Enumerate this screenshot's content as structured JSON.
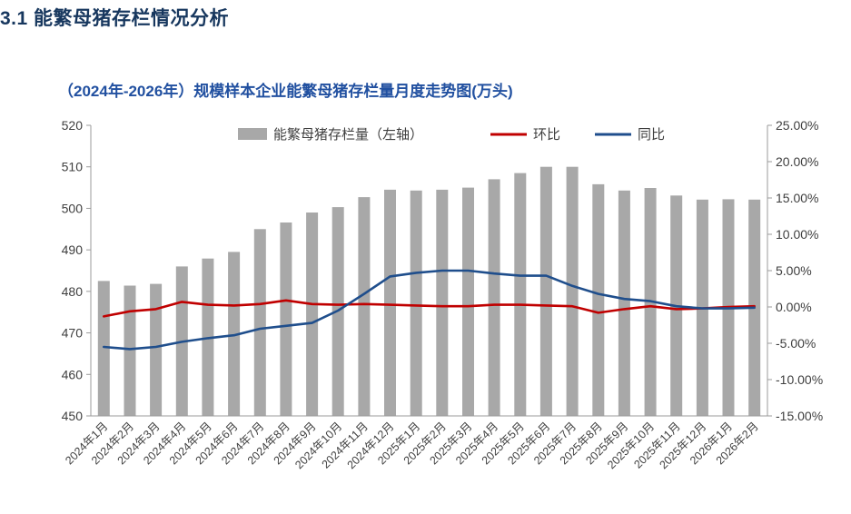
{
  "page": {
    "heading": "3.1 能繁母猪存栏情况分析"
  },
  "chart": {
    "title": "（2024年-2026年）规模样本企业能繁母猪存栏量月度走势图(万头)"
  },
  "chart_data": {
    "type": "bar",
    "title": "（2024年-2026年）规模样本企业能繁母猪存栏量月度走势图(万头)",
    "categories": [
      "2024年1月",
      "2024年2月",
      "2024年3月",
      "2024年4月",
      "2024年5月",
      "2024年6月",
      "2024年7月",
      "2024年8月",
      "2024年9月",
      "2024年10月",
      "2024年11月",
      "2024年12月",
      "2025年1月",
      "2025年2月",
      "2025年3月",
      "2025年4月",
      "2025年5月",
      "2025年6月",
      "2025年7月",
      "2025年8月",
      "2025年9月",
      "2025年10月",
      "2025年11月",
      "2025年12月",
      "2026年1月",
      "2026年2月"
    ],
    "series": [
      {
        "name": "能繁母猪存栏量（左轴）",
        "type": "bar",
        "axis": "left",
        "color": "#a8a8a8",
        "values": [
          482.5,
          481.4,
          481.8,
          486.0,
          487.9,
          489.5,
          495.0,
          496.6,
          499.0,
          500.3,
          502.7,
          504.5,
          504.3,
          504.5,
          505.0,
          507.0,
          508.5,
          510.0,
          510.0,
          505.8,
          504.3,
          504.9,
          503.1,
          502.1,
          502.2,
          502.1
        ]
      },
      {
        "name": "环比",
        "type": "line",
        "axis": "right",
        "color": "#c00000",
        "values": [
          -1.3,
          -0.6,
          -0.3,
          0.7,
          0.3,
          0.2,
          0.4,
          0.9,
          0.4,
          0.3,
          0.4,
          0.3,
          0.2,
          0.1,
          0.1,
          0.3,
          0.3,
          0.2,
          0.1,
          -0.8,
          -0.3,
          0.1,
          -0.3,
          -0.2,
          0.0,
          0.1
        ]
      },
      {
        "name": "同比",
        "type": "line",
        "axis": "right",
        "color": "#1f4e8c",
        "values": [
          -5.5,
          -5.8,
          -5.5,
          -4.8,
          -4.3,
          -3.9,
          -3.0,
          -2.6,
          -2.2,
          -0.5,
          1.8,
          4.2,
          4.7,
          5.0,
          5.0,
          4.6,
          4.3,
          4.3,
          2.9,
          1.8,
          1.1,
          0.8,
          0.1,
          -0.2,
          -0.2,
          -0.1
        ]
      }
    ],
    "left_axis": {
      "min": 450,
      "max": 520,
      "step": 10,
      "labels": [
        "450",
        "460",
        "470",
        "480",
        "490",
        "500",
        "510",
        "520"
      ]
    },
    "right_axis": {
      "min": -15,
      "max": 25,
      "step": 5,
      "format": "percent2",
      "labels": [
        "-15.00%",
        "-10.00%",
        "-5.00%",
        "0.00%",
        "5.00%",
        "10.00%",
        "15.00%",
        "20.00%",
        "25.00%"
      ]
    },
    "legend_position": "top",
    "grid": false
  }
}
